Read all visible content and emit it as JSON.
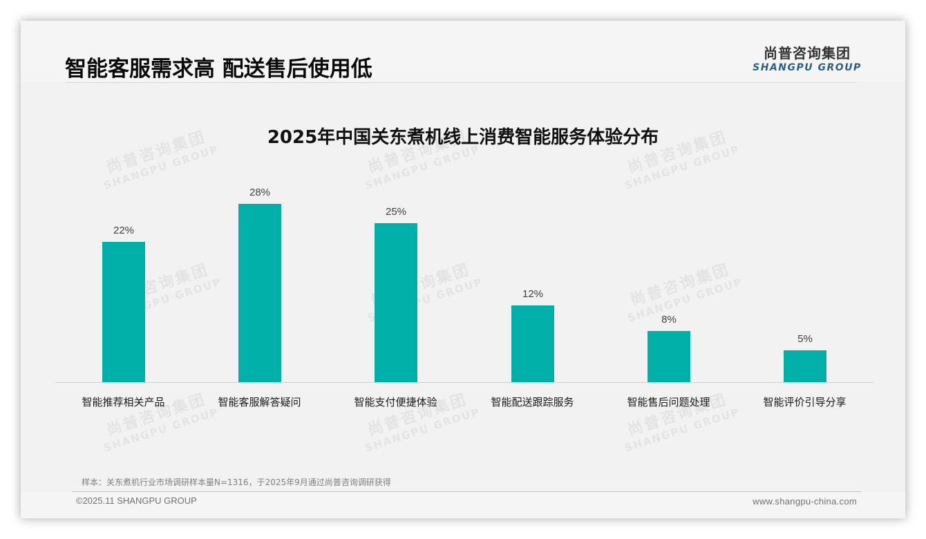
{
  "header": {
    "title": "智能客服需求高 配送售后使用低",
    "logo_cn": "尚普咨询集团",
    "logo_en": "SHANGPU GROUP"
  },
  "watermark": {
    "cn": "尚普咨询集团",
    "en": "SHANGPU GROUP"
  },
  "chart_data": {
    "type": "bar",
    "title": "2025年中国关东煮机线上消费智能服务体验分布",
    "categories": [
      "智能推荐相关产品",
      "智能客服解答疑问",
      "智能支付便捷体验",
      "智能配送跟踪服务",
      "智能售后问题处理",
      "智能评价引导分享"
    ],
    "values": [
      22,
      28,
      25,
      12,
      8,
      5
    ],
    "value_labels": [
      "22%",
      "28%",
      "25%",
      "12%",
      "8%",
      "5%"
    ],
    "unit": "%",
    "xlabel": "",
    "ylabel": "",
    "ylim": [
      0,
      28
    ],
    "grid": false,
    "legend": "none",
    "bar_color": "#00b0a8"
  },
  "footer": {
    "note": "样本：关东煮机行业市场调研样本量N=1316，于2025年9月通过尚普咨询调研获得",
    "copyright": "©2025.11 SHANGPU GROUP",
    "website": "www.shangpu-china.com"
  }
}
